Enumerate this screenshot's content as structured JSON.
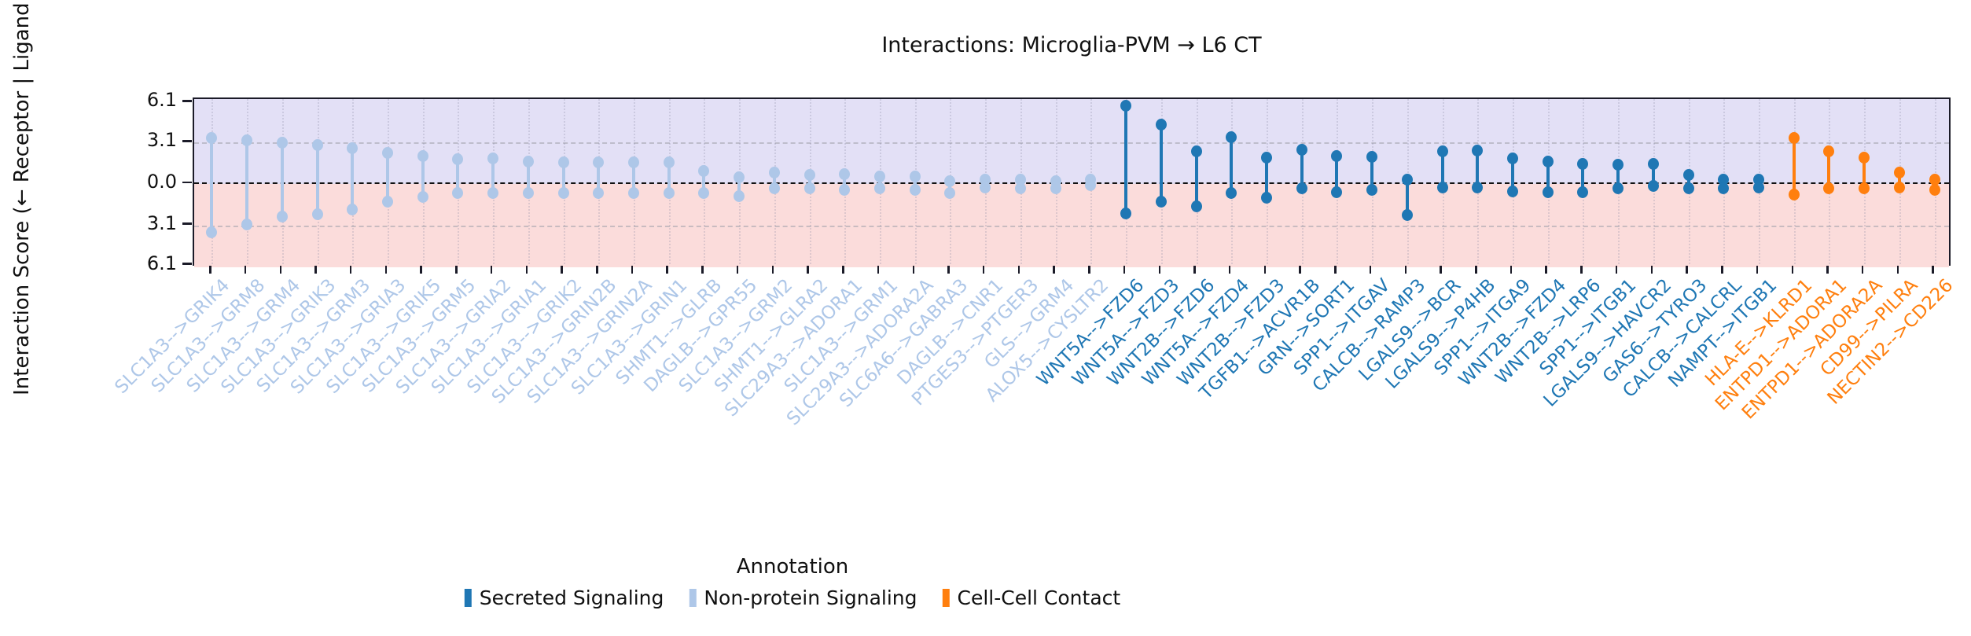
{
  "title": "Interactions: Microglia-PVM → L6 CT",
  "y_axis": {
    "label": "Interaction Score (← Receptor | Ligand →)",
    "tick_labels": [
      "6.1",
      "3.1",
      "0.0",
      "3.1",
      "6.1"
    ],
    "tick_values": [
      6.1,
      3.1,
      0.0,
      -3.1,
      -6.1
    ]
  },
  "legend": {
    "title": "Annotation",
    "items": [
      {
        "label": "Secreted Signaling",
        "color": "#1f77b4"
      },
      {
        "label": "Non-protein Signaling",
        "color": "#aec7e8"
      },
      {
        "label": "Cell-Cell Contact",
        "color": "#ff7f0e"
      }
    ]
  },
  "colors": {
    "ligand_band": "#e3e0f6",
    "receptor_band": "#fbdcdb",
    "zero_line": "#000000",
    "annotation_colors": {
      "Secreted Signaling": "#1f77b4",
      "Non-protein Signaling": "#aec7e8",
      "Cell-Cell Contact": "#ff7f0e"
    }
  },
  "chart_data": {
    "type": "lollipop",
    "title": "Interactions: Microglia-PVM → L6 CT",
    "ylabel": "Interaction Score (← Receptor | Ligand →)",
    "ylim": [
      -6.3,
      6.3
    ],
    "ytick_values": [
      6.1,
      3.1,
      0.0,
      -3.1,
      -6.1
    ],
    "grid": "horizontal dashed at ±3.1, black dashed at 0, faint vertical dotted per item",
    "legend_position": "bottom center",
    "points": [
      {
        "label": "SLC1A3-->GRIK4",
        "annotation": "Non-protein Signaling",
        "ligand": 3.45,
        "receptor": -3.6
      },
      {
        "label": "SLC1A3-->GRM8",
        "annotation": "Non-protein Signaling",
        "ligand": 3.25,
        "receptor": -3.0
      },
      {
        "label": "SLC1A3-->GRM4",
        "annotation": "Non-protein Signaling",
        "ligand": 3.1,
        "receptor": -2.45
      },
      {
        "label": "SLC1A3-->GRIK3",
        "annotation": "Non-protein Signaling",
        "ligand": 2.9,
        "receptor": -2.25
      },
      {
        "label": "SLC1A3-->GRM3",
        "annotation": "Non-protein Signaling",
        "ligand": 2.7,
        "receptor": -1.9
      },
      {
        "label": "SLC1A3-->GRIA3",
        "annotation": "Non-protein Signaling",
        "ligand": 2.35,
        "receptor": -1.3
      },
      {
        "label": "SLC1A3-->GRIK5",
        "annotation": "Non-protein Signaling",
        "ligand": 2.1,
        "receptor": -0.95
      },
      {
        "label": "SLC1A3-->GRM5",
        "annotation": "Non-protein Signaling",
        "ligand": 1.85,
        "receptor": -0.65
      },
      {
        "label": "SLC1A3-->GRIA2",
        "annotation": "Non-protein Signaling",
        "ligand": 1.9,
        "receptor": -0.65
      },
      {
        "label": "SLC1A3-->GRIA1",
        "annotation": "Non-protein Signaling",
        "ligand": 1.7,
        "receptor": -0.65
      },
      {
        "label": "SLC1A3-->GRIK2",
        "annotation": "Non-protein Signaling",
        "ligand": 1.6,
        "receptor": -0.65
      },
      {
        "label": "SLC1A3-->GRIN2B",
        "annotation": "Non-protein Signaling",
        "ligand": 1.6,
        "receptor": -0.65
      },
      {
        "label": "SLC1A3-->GRIN2A",
        "annotation": "Non-protein Signaling",
        "ligand": 1.6,
        "receptor": -0.65
      },
      {
        "label": "SLC1A3-->GRIN1",
        "annotation": "Non-protein Signaling",
        "ligand": 1.6,
        "receptor": -0.65
      },
      {
        "label": "SHMT1-->GLRB",
        "annotation": "Non-protein Signaling",
        "ligand": 0.95,
        "receptor": -0.65
      },
      {
        "label": "DAGLB-->GPR55",
        "annotation": "Non-protein Signaling",
        "ligand": 0.5,
        "receptor": -0.9
      },
      {
        "label": "SLC1A3-->GRM2",
        "annotation": "Non-protein Signaling",
        "ligand": 0.85,
        "receptor": -0.35
      },
      {
        "label": "SHMT1-->GLRA2",
        "annotation": "Non-protein Signaling",
        "ligand": 0.7,
        "receptor": -0.35
      },
      {
        "label": "SLC29A3-->ADORA1",
        "annotation": "Non-protein Signaling",
        "ligand": 0.75,
        "receptor": -0.45
      },
      {
        "label": "SLC1A3-->GRM1",
        "annotation": "Non-protein Signaling",
        "ligand": 0.55,
        "receptor": -0.35
      },
      {
        "label": "SLC29A3-->ADORA2A",
        "annotation": "Non-protein Signaling",
        "ligand": 0.55,
        "receptor": -0.45
      },
      {
        "label": "SLC6A6-->GABRA3",
        "annotation": "Non-protein Signaling",
        "ligand": 0.2,
        "receptor": -0.7
      },
      {
        "label": "DAGLB-->CNR1",
        "annotation": "Non-protein Signaling",
        "ligand": 0.3,
        "receptor": -0.25
      },
      {
        "label": "PTGES3-->PTGER3",
        "annotation": "Non-protein Signaling",
        "ligand": 0.3,
        "receptor": -0.3
      },
      {
        "label": "GLS-->GRM4",
        "annotation": "Non-protein Signaling",
        "ligand": 0.2,
        "receptor": -0.3
      },
      {
        "label": "ALOX5-->CYSLTR2",
        "annotation": "Non-protein Signaling",
        "ligand": 0.3,
        "receptor": -0.1
      },
      {
        "label": "WNT5A-->FZD6",
        "annotation": "Secreted Signaling",
        "ligand": 5.85,
        "receptor": -2.2
      },
      {
        "label": "WNT5A-->FZD3",
        "annotation": "Secreted Signaling",
        "ligand": 4.45,
        "receptor": -1.3
      },
      {
        "label": "WNT2B-->FZD6",
        "annotation": "Secreted Signaling",
        "ligand": 2.45,
        "receptor": -1.7
      },
      {
        "label": "WNT5A-->FZD4",
        "annotation": "Secreted Signaling",
        "ligand": 3.5,
        "receptor": -0.65
      },
      {
        "label": "WNT2B-->FZD3",
        "annotation": "Secreted Signaling",
        "ligand": 2.0,
        "receptor": -1.0
      },
      {
        "label": "TGFB1-->ACVR1B",
        "annotation": "Secreted Signaling",
        "ligand": 2.55,
        "receptor": -0.35
      },
      {
        "label": "GRN-->SORT1",
        "annotation": "Secreted Signaling",
        "ligand": 2.1,
        "receptor": -0.6
      },
      {
        "label": "SPP1-->ITGAV",
        "annotation": "Secreted Signaling",
        "ligand": 2.05,
        "receptor": -0.45
      },
      {
        "label": "CALCB-->RAMP3",
        "annotation": "Secreted Signaling",
        "ligand": 0.3,
        "receptor": -2.3
      },
      {
        "label": "LGALS9-->BCR",
        "annotation": "Secreted Signaling",
        "ligand": 2.45,
        "receptor": -0.25
      },
      {
        "label": "LGALS9-->P4HB",
        "annotation": "Secreted Signaling",
        "ligand": 2.5,
        "receptor": -0.25
      },
      {
        "label": "SPP1-->ITGA9",
        "annotation": "Secreted Signaling",
        "ligand": 1.9,
        "receptor": -0.55
      },
      {
        "label": "WNT2B-->FZD4",
        "annotation": "Secreted Signaling",
        "ligand": 1.65,
        "receptor": -0.6
      },
      {
        "label": "WNT2B-->LRP6",
        "annotation": "Secreted Signaling",
        "ligand": 1.5,
        "receptor": -0.6
      },
      {
        "label": "SPP1-->ITGB1",
        "annotation": "Secreted Signaling",
        "ligand": 1.45,
        "receptor": -0.35
      },
      {
        "label": "LGALS9-->HAVCR2",
        "annotation": "Secreted Signaling",
        "ligand": 1.5,
        "receptor": -0.15
      },
      {
        "label": "GAS6-->TYRO3",
        "annotation": "Secreted Signaling",
        "ligand": 0.7,
        "receptor": -0.35
      },
      {
        "label": "CALCB-->CALCRL",
        "annotation": "Secreted Signaling",
        "ligand": 0.3,
        "receptor": -0.35
      },
      {
        "label": "NAMPT-->ITGB1",
        "annotation": "Secreted Signaling",
        "ligand": 0.3,
        "receptor": -0.25
      },
      {
        "label": "HLA-E-->KLRD1",
        "annotation": "Cell-Cell Contact",
        "ligand": 3.45,
        "receptor": -0.8
      },
      {
        "label": "ENTPD1-->ADORA1",
        "annotation": "Cell-Cell Contact",
        "ligand": 2.45,
        "receptor": -0.35
      },
      {
        "label": "ENTPD1-->ADORA2A",
        "annotation": "Cell-Cell Contact",
        "ligand": 2.0,
        "receptor": -0.35
      },
      {
        "label": "CD99-->PILRA",
        "annotation": "Cell-Cell Contact",
        "ligand": 0.85,
        "receptor": -0.25
      },
      {
        "label": "NECTIN2-->CD226",
        "annotation": "Cell-Cell Contact",
        "ligand": 0.3,
        "receptor": -0.45
      }
    ]
  }
}
